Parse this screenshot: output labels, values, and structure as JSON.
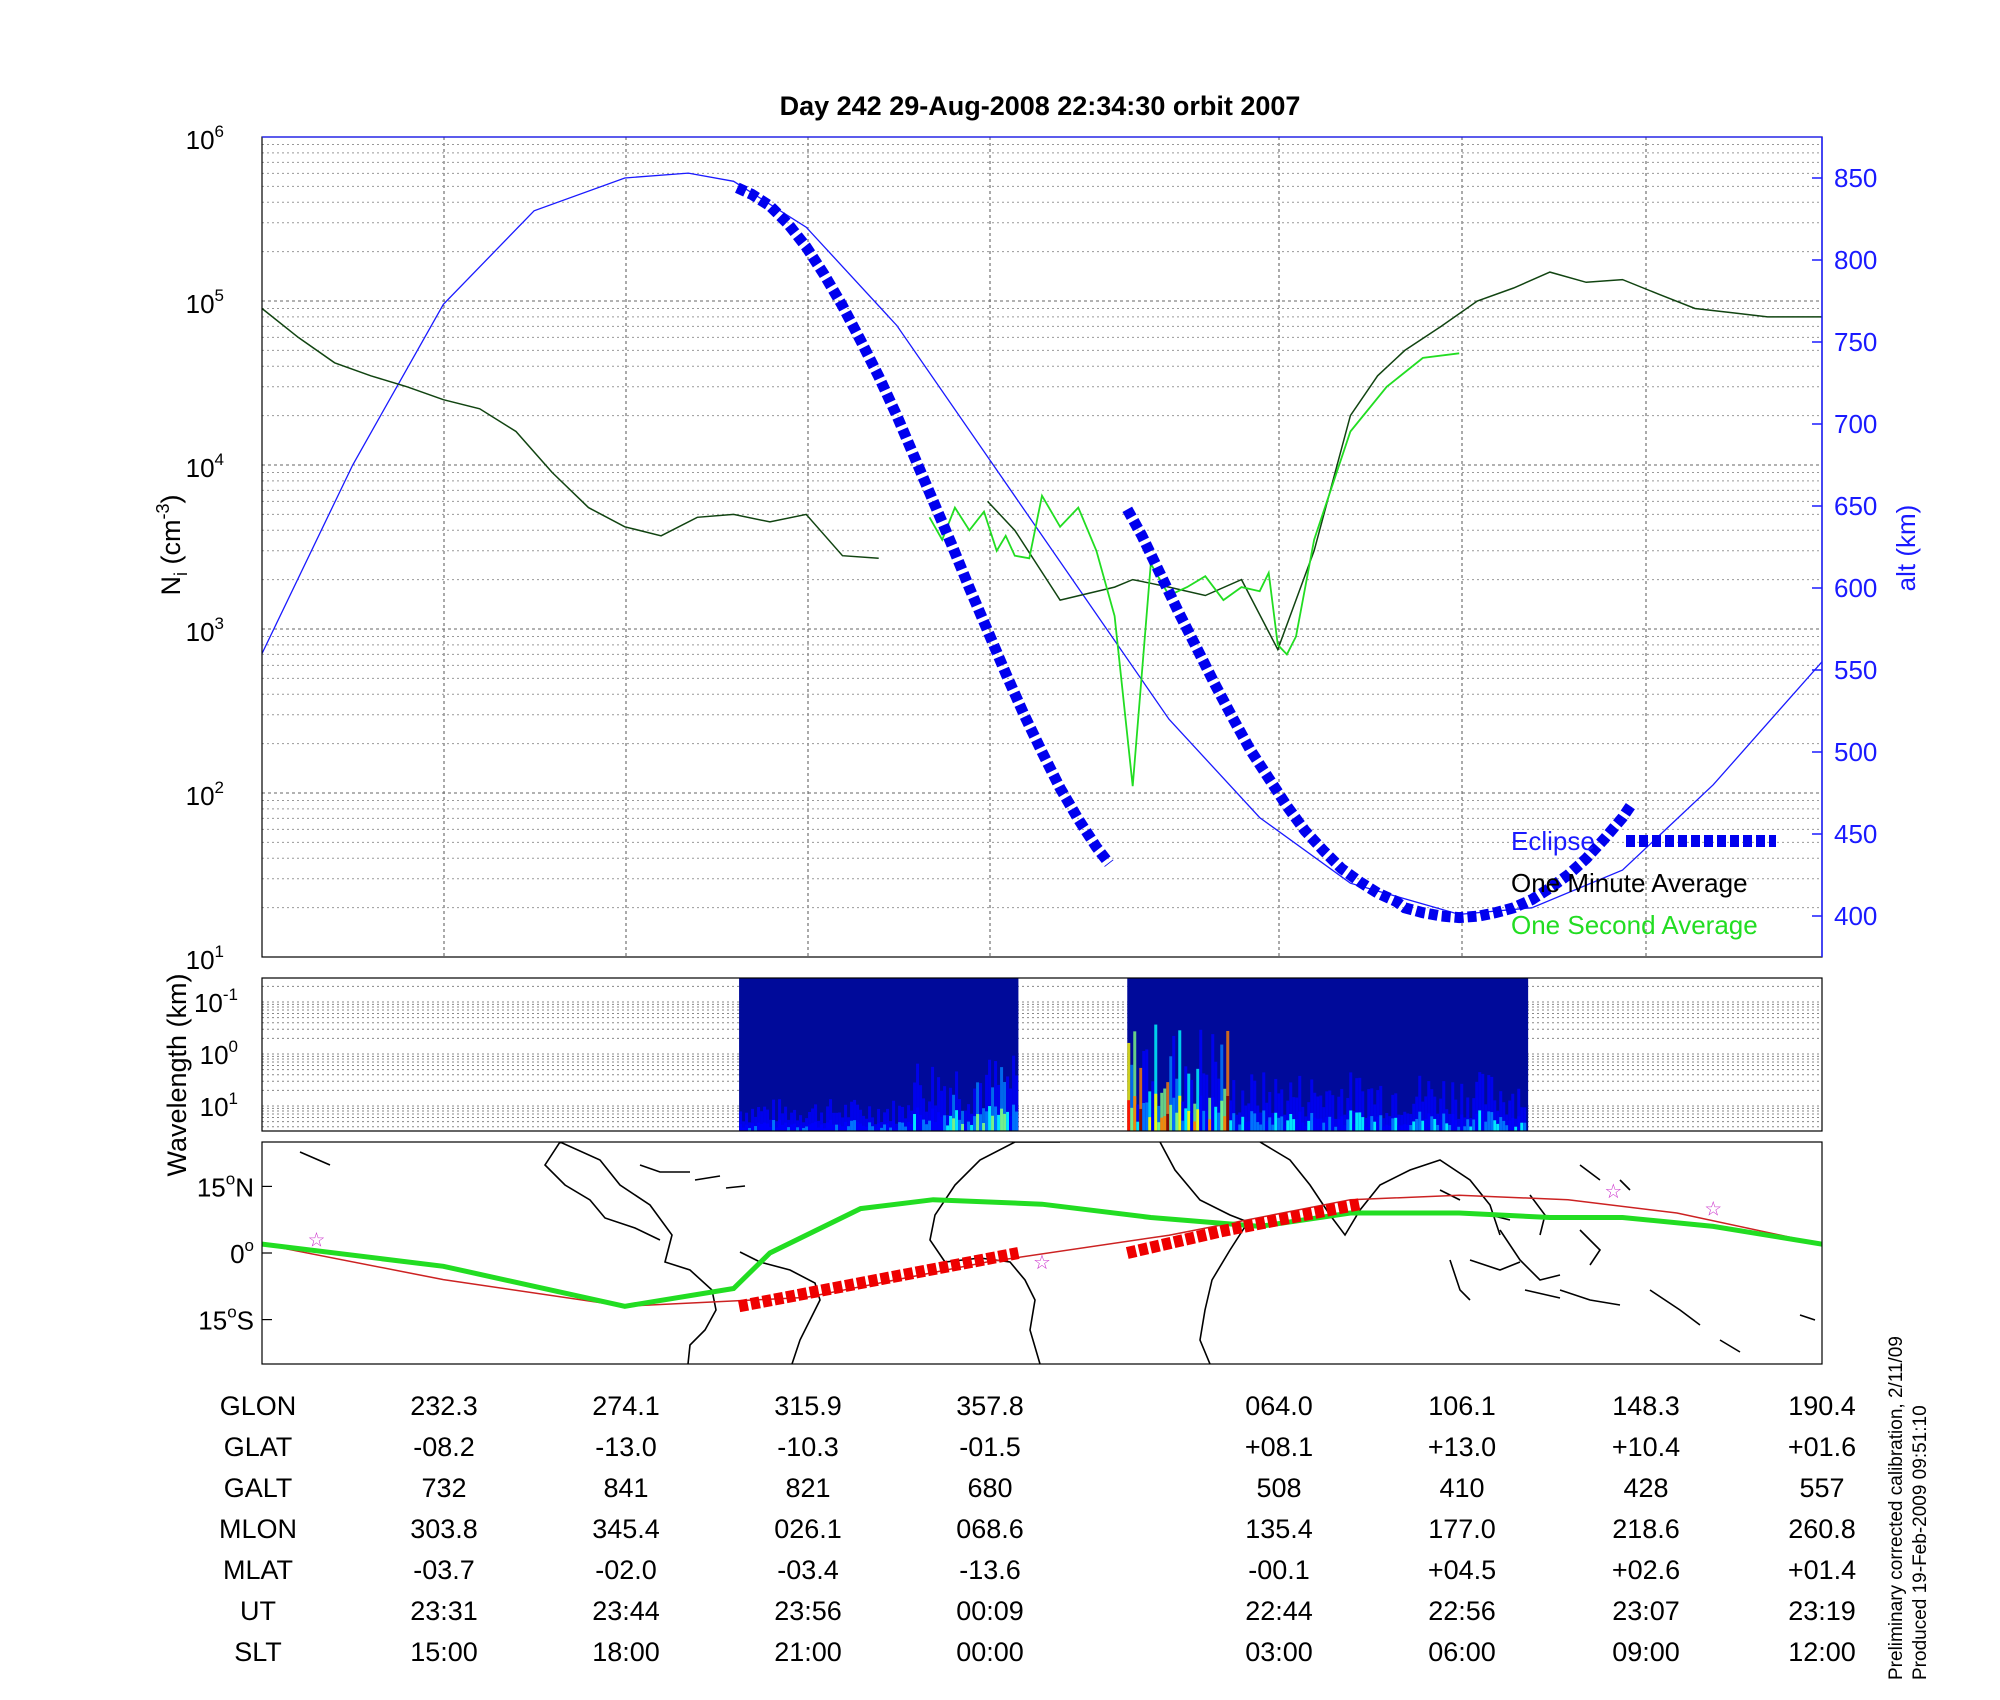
{
  "title": "Day 242  29-Aug-2008 22:34:30   orbit 2007",
  "colors": {
    "altitude": "#1a1aff",
    "eclipse": "#0000ee",
    "minute_avg": "#000000",
    "second_avg": "#22dd22",
    "ground_track": "#22dd22",
    "red_track": "#ee0000",
    "thin_track": "#cc2222",
    "stars": "#cc33cc"
  },
  "chart_data": [
    {
      "type": "line",
      "panel": "density",
      "ylabel": "N",
      "ylabel_sub": "i",
      "ylabel_unit": "(cm",
      "ylabel_unit_sup": "-3",
      "ylabel_close": ")",
      "y_scale": "log",
      "ylim": [
        10,
        1000000
      ],
      "y_ticks": [
        {
          "base": "10",
          "exp": "1"
        },
        {
          "base": "10",
          "exp": "2"
        },
        {
          "base": "10",
          "exp": "3"
        },
        {
          "base": "10",
          "exp": "4"
        },
        {
          "base": "10",
          "exp": "5"
        },
        {
          "base": "10",
          "exp": "6"
        }
      ],
      "y2label": "alt (km)",
      "y2lim": [
        375,
        875
      ],
      "y2_ticks": [
        "400",
        "450",
        "500",
        "550",
        "600",
        "650",
        "700",
        "750",
        "800",
        "850"
      ],
      "xlim": [
        0,
        86
      ],
      "x_note": "x in minutes of the orbit; SLT tick labels are printed in the table below",
      "grid": true,
      "legend_position": "bottom-right",
      "legend": [
        "Eclipse",
        "One Minute Average",
        "One Second Average"
      ],
      "series": [
        {
          "name": "One Minute Average",
          "x": [
            0,
            2,
            4,
            6,
            8,
            10,
            12,
            14,
            16,
            18,
            20,
            22,
            24,
            26,
            28,
            30,
            32,
            34,
            36,
            38,
            40,
            41.5,
            44,
            47,
            48,
            49,
            50,
            52,
            54,
            56,
            58,
            60,
            61.5,
            63,
            65,
            67,
            69,
            71,
            73,
            75,
            77,
            79,
            81,
            83,
            86
          ],
          "y": [
            90000,
            60000,
            42000,
            35000,
            30000,
            25000,
            22000,
            16000,
            9000,
            5500,
            4200,
            3700,
            4800,
            5000,
            4500,
            5000,
            2800,
            2700,
            null,
            null,
            6000,
            4000,
            1500,
            1800,
            2000,
            1900,
            1800,
            1600,
            2000,
            750,
            3000,
            20000,
            35000,
            50000,
            70000,
            100000,
            120000,
            150000,
            130000,
            135000,
            110000,
            90000,
            85000,
            80000,
            80000
          ]
        },
        {
          "name": "One Second Average",
          "x": [
            36.8,
            37.5,
            38.2,
            39,
            39.8,
            40.5,
            41,
            41.5,
            42.3,
            43,
            44,
            45,
            46,
            47,
            48,
            49,
            50,
            51,
            52,
            53,
            54,
            55,
            55.5,
            56,
            56.5,
            57,
            58,
            60,
            62,
            64,
            66
          ],
          "y": [
            4800,
            3500,
            5500,
            4000,
            5200,
            3000,
            3700,
            2800,
            2700,
            6500,
            4200,
            5500,
            3000,
            1200,
            110,
            2500,
            1600,
            1800,
            2100,
            1500,
            1800,
            1700,
            2200,
            800,
            700,
            900,
            3500,
            16000,
            30000,
            45000,
            48000
          ]
        },
        {
          "name": "Eclipse",
          "axis": "alt",
          "segments": [
            {
              "x": [
                26.2,
                27,
                28,
                29,
                30,
                31,
                32,
                33,
                34,
                35,
                36,
                37,
                38,
                39,
                40,
                41,
                42,
                43,
                44,
                45,
                46,
                46.7
              ],
              "y": [
                844,
                840,
                833,
                822,
                808,
                791,
                772,
                751,
                729,
                705,
                679,
                653,
                627,
                600,
                574,
                548,
                523,
                500,
                478,
                459,
                442,
                432
              ]
            },
            {
              "x": [
                47.7,
                48.5,
                49.5,
                50.5,
                51.5,
                52.5,
                53.5,
                54.5,
                55.5,
                56.5,
                57.5,
                58.5,
                59.5,
                60.5,
                61.5,
                62.5,
                63,
                64,
                65,
                66,
                67.1,
                68,
                69,
                70,
                71,
                72,
                73,
                74,
                75,
                75.5
              ],
              "y": [
                648,
                632,
                609,
                586,
                564,
                542,
                521,
                501,
                484,
                467,
                452,
                440,
                429,
                421,
                414,
                409,
                405,
                402,
                400,
                399,
                400,
                402,
                405,
                410,
                417,
                425,
                435,
                447,
                460,
                468
              ]
            }
          ]
        },
        {
          "name": "alt (km)",
          "axis": "alt",
          "x": [
            0,
            5,
            10,
            15,
            20,
            23.5,
            26,
            30,
            35,
            40,
            45,
            50,
            55,
            60,
            66,
            70,
            75,
            80,
            86
          ],
          "y": [
            560,
            675,
            773,
            830,
            850,
            853,
            848,
            820,
            760,
            680,
            600,
            520,
            460,
            420,
            401,
            405,
            428,
            480,
            555
          ]
        }
      ]
    },
    {
      "type": "heatmap",
      "panel": "spectrogram",
      "ylabel": "Wavelength (km)",
      "y_ticks": [
        {
          "base": "10",
          "exp": "-1"
        },
        {
          "base": "10",
          "exp": "0"
        },
        {
          "base": "10",
          "exp": "1"
        }
      ],
      "colormap": [
        "#00008f",
        "#0000ff",
        "#0080ff",
        "#00ffff",
        "#80ff80",
        "#ffff00",
        "#ff8000",
        "#ff0000",
        "#800000"
      ],
      "data_blocks_x": [
        [
          26.3,
          41.7
        ],
        [
          47.7,
          69.8
        ]
      ],
      "data_blocks_intensity": "low",
      "grid": true
    },
    {
      "type": "line",
      "panel": "map",
      "y_ticks": [
        {
          "value": "15",
          "deg": "o",
          "hemi": "N"
        },
        {
          "value": "0",
          "deg": "o",
          "hemi": ""
        },
        {
          "value": "15",
          "deg": "o",
          "hemi": "S"
        }
      ],
      "ylim": [
        -25,
        25
      ],
      "xlim": [
        0,
        86
      ],
      "series": [
        {
          "name": "ground track",
          "x": [
            0,
            10,
            20,
            26,
            28,
            33,
            37,
            43,
            49,
            55,
            60,
            66,
            71,
            75,
            80,
            86
          ],
          "y": [
            2,
            -3,
            -12,
            -8,
            0,
            10,
            12,
            11,
            8,
            6,
            9,
            9,
            8,
            8,
            6,
            2
          ]
        },
        {
          "name": "thin track",
          "x": [
            0,
            10,
            20,
            30,
            40,
            50,
            60,
            66,
            72,
            78,
            86
          ],
          "y": [
            2,
            -6,
            -12,
            -10,
            -2,
            4,
            12,
            13,
            12,
            9,
            2
          ]
        },
        {
          "name": "red track",
          "segments": [
            {
              "x": [
                26.3,
                34,
                41.7
              ],
              "y": [
                -12,
                -6,
                0
              ]
            },
            {
              "x": [
                47.7,
                53,
                60.5
              ],
              "y": [
                0,
                5,
                11
              ]
            }
          ]
        }
      ],
      "stars": [
        {
          "x": 3,
          "y": 3
        },
        {
          "x": 43,
          "y": -2
        },
        {
          "x": 74.5,
          "y": 14
        },
        {
          "x": 80,
          "y": 10
        }
      ]
    }
  ],
  "table": {
    "rows": [
      {
        "label": "GLON",
        "values": [
          "232.3",
          "274.1",
          "315.9",
          "357.8",
          "064.0",
          "106.1",
          "148.3",
          "190.4"
        ]
      },
      {
        "label": "GLAT",
        "values": [
          "-08.2",
          "-13.0",
          "-10.3",
          "-01.5",
          "+08.1",
          "+13.0",
          "+10.4",
          "+01.6"
        ]
      },
      {
        "label": "GALT",
        "values": [
          "732",
          "841",
          "821",
          "680",
          "508",
          "410",
          "428",
          "557"
        ]
      },
      {
        "label": "MLON",
        "values": [
          "303.8",
          "345.4",
          "026.1",
          "068.6",
          "135.4",
          "177.0",
          "218.6",
          "260.8"
        ]
      },
      {
        "label": "MLAT",
        "values": [
          "-03.7",
          "-02.0",
          "-03.4",
          "-13.6",
          "-00.1",
          "+04.5",
          "+02.6",
          "+01.4"
        ]
      },
      {
        "label": "UT",
        "values": [
          "23:31",
          "23:44",
          "23:56",
          "00:09",
          "22:44",
          "22:56",
          "23:07",
          "23:19"
        ]
      },
      {
        "label": "SLT",
        "values": [
          "15:00",
          "18:00",
          "21:00",
          "00:00",
          "03:00",
          "06:00",
          "09:00",
          "12:00"
        ]
      }
    ]
  },
  "side_notes": [
    "Preliminary corrected calibration, 2/11/09",
    "Produced 19-Feb-2009 09:51:10"
  ]
}
